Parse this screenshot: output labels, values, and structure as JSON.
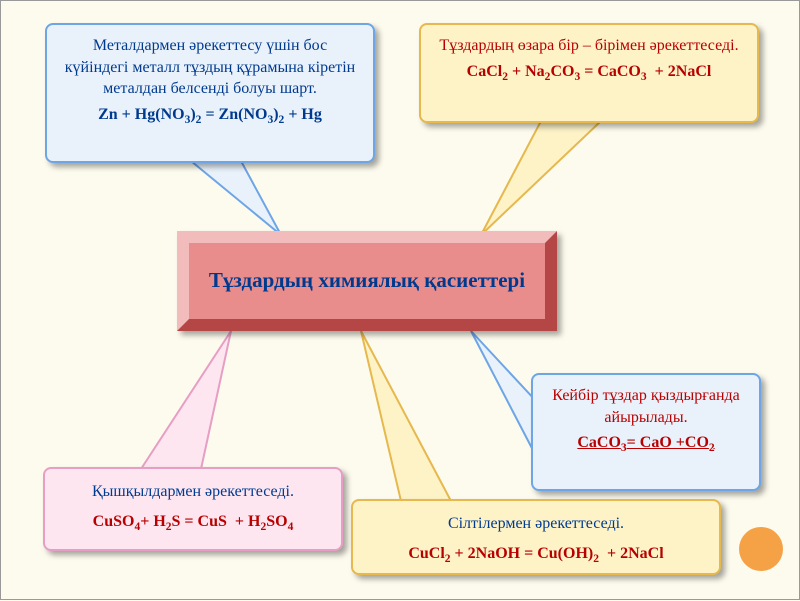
{
  "background_color": "#fdfbee",
  "colors": {
    "blue_box_bg": "#e9f2fb",
    "blue_box_border": "#6da5e6",
    "yellow_box_bg": "#fdf3c7",
    "yellow_box_border": "#e6b84d",
    "pink_box_bg": "#fde6f0",
    "pink_box_border": "#e79ec4",
    "center_fill": "#e98c8c",
    "center_highlight": "#f3bcbc",
    "center_shadow": "#b44646",
    "text_blue": "#003a8f",
    "text_red": "#b80000"
  },
  "center": {
    "title": "Тұздардың химиялық қасиеттері"
  },
  "top_left": {
    "desc": "Металдармен әрекеттесу үшін бос күйіндегі металл тұздың құрамына кіретін металдан белсенді болуы шарт.",
    "formula_html": "Zn + Hg(NO<sub>3</sub>)<sub>2</sub> = Zn(NO<sub>3</sub>)<sub>2</sub> + Hg"
  },
  "top_right": {
    "desc": "Тұздардың өзара бір – бірімен әрекеттеседі.",
    "formula_html": "CaCl<sub>2</sub> + Na<sub>2</sub>CO<sub>3</sub> = CaCO<sub>3</sub>&nbsp;&nbsp;+ 2NaCl"
  },
  "bottom_left": {
    "desc": "Қышқылдармен әрекеттеседі.",
    "formula_html": "CuSO<sub>4</sub>+ H<sub>2</sub>S = CuS&nbsp;&nbsp;+ H<sub>2</sub>SO<sub>4</sub>"
  },
  "bottom_mid": {
    "desc": "Сілтілермен әрекеттеседі.",
    "formula_html": "CuCl<sub>2</sub> + 2NaOH = Cu(OH)<sub>2</sub>&nbsp;&nbsp;+ 2NaCl"
  },
  "right": {
    "desc": "Кейбір тұздар қыздырғанда айырылады.",
    "formula_html": "CaCO<sub>3</sub>= CaO +CO<sub>2</sub>"
  }
}
